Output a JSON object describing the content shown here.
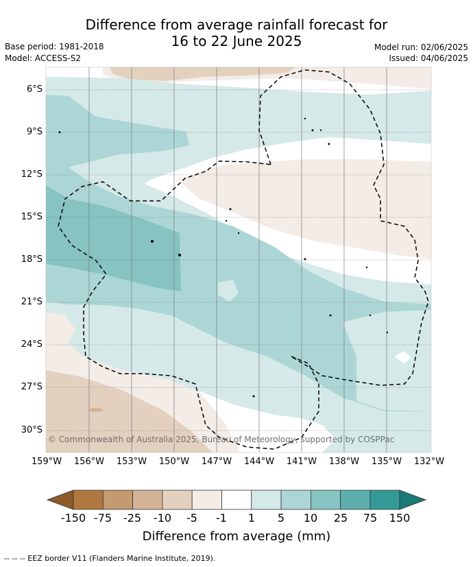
{
  "title": {
    "line1": "Difference from average rainfall forecast for",
    "line2": "16 to 22 June 2025"
  },
  "meta": {
    "base_period": "Base period: 1981-2018",
    "model": "Model: ACCESS-S2",
    "model_run": "Model run: 02/06/2025",
    "issued": "Issued: 04/06/2025"
  },
  "map": {
    "lat_labels": [
      "6°S",
      "9°S",
      "12°S",
      "15°S",
      "18°S",
      "21°S",
      "24°S",
      "27°S",
      "30°S"
    ],
    "lon_labels": [
      "159°W",
      "156°W",
      "153°W",
      "150°W",
      "147°W",
      "144°W",
      "141°W",
      "138°W",
      "135°W",
      "132°W"
    ],
    "copyright": "© Commonwealth of Australia 2025, Bureau of Meteorology, supported by COSPPac",
    "colors": {
      "neg150": "#8f5a2a",
      "neg75": "#b07840",
      "neg25": "#c49a70",
      "neg10": "#d4b496",
      "neg5": "#e3d0bf",
      "neg1": "#f3ece7",
      "near_zero": "#ffffff",
      "pos1": "#d5e9e8",
      "pos5": "#acd6d5",
      "pos10": "#86c3c1",
      "pos25": "#5dafad",
      "pos75": "#349a98",
      "pos150": "#1a7a78"
    }
  },
  "colorbar": {
    "labels": [
      "-150",
      "-75",
      "-25",
      "-10",
      "-5",
      "-1",
      "1",
      "5",
      "10",
      "25",
      "75",
      "150"
    ],
    "title": "Difference from average (mm)"
  },
  "footer": {
    "legend": "-- -- -- EEZ border V11 (Flanders Marine Institute, 2019)."
  }
}
